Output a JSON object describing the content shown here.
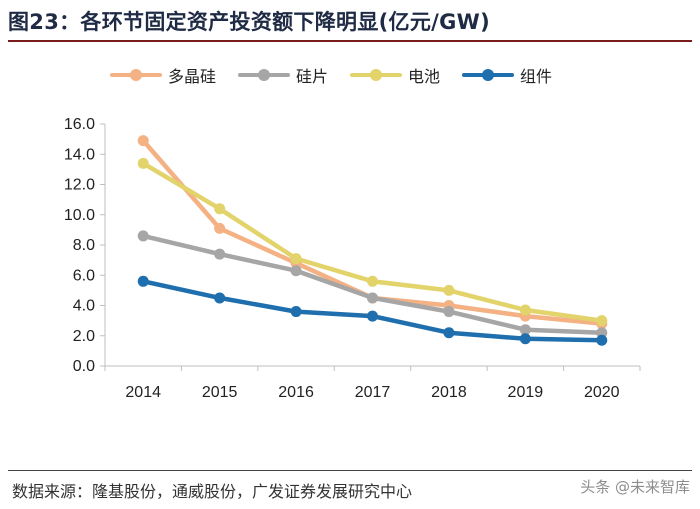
{
  "title": "图23：各环节固定资产投资额下降明显(亿元/GW)",
  "source": "数据来源：隆基股份，通威股份，广发证券发展研究中心",
  "watermark": "头条 @未来智库",
  "colors": {
    "polysilicon": "#f4b183",
    "wafer": "#a6a6a6",
    "cell": "#e2d36b",
    "module": "#1f6fae",
    "axis": "#bfbfbf",
    "text": "#222222"
  },
  "chart_data": {
    "type": "line",
    "title": "各环节固定资产投资额下降明显(亿元/GW)",
    "xlabel": "",
    "ylabel": "",
    "categories": [
      "2014",
      "2015",
      "2016",
      "2017",
      "2018",
      "2019",
      "2020"
    ],
    "ylim": [
      0,
      16
    ],
    "yticks": [
      "0.0",
      "2.0",
      "4.0",
      "6.0",
      "8.0",
      "10.0",
      "12.0",
      "14.0",
      "16.0"
    ],
    "legend_position": "top",
    "series": [
      {
        "name": "多晶硅",
        "color": "#f4b183",
        "values": [
          14.9,
          9.1,
          6.8,
          4.5,
          4.0,
          3.3,
          2.8
        ]
      },
      {
        "name": "硅片",
        "color": "#a6a6a6",
        "values": [
          8.6,
          7.4,
          6.3,
          4.5,
          3.6,
          2.4,
          2.2
        ]
      },
      {
        "name": "电池",
        "color": "#e2d36b",
        "values": [
          13.4,
          10.4,
          7.1,
          5.6,
          5.0,
          3.7,
          3.0
        ]
      },
      {
        "name": "组件",
        "color": "#1f6fae",
        "values": [
          5.6,
          4.5,
          3.6,
          3.3,
          2.2,
          1.8,
          1.7
        ]
      }
    ]
  }
}
